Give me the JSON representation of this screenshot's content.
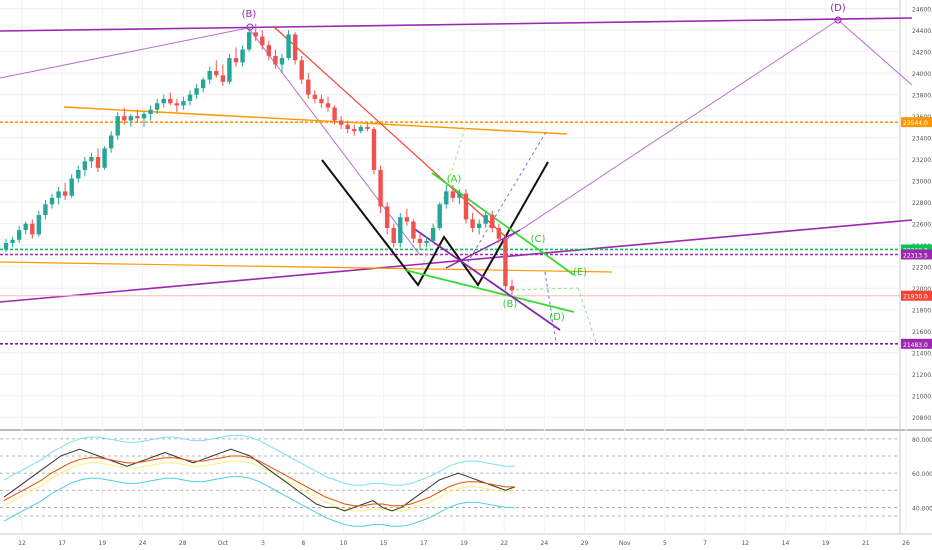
{
  "chart_data": {
    "type": "candlestick",
    "instrument_panel": {
      "y_axis_ticks": [
        24600.0,
        24400.0,
        24200.0,
        24000.0,
        23800.0,
        23600.0,
        23400.0,
        23200.0,
        23000.0,
        22800.0,
        22600.0,
        22400.0,
        22200.0,
        22000.0,
        21800.0,
        21600.0,
        21400.0,
        21200.0,
        21000.0,
        20800.0
      ],
      "ylim": [
        20700,
        24680
      ],
      "grid": true,
      "candles": [
        [
          22360,
          22460,
          22340,
          22420
        ],
        [
          22420,
          22480,
          22380,
          22450
        ],
        [
          22450,
          22580,
          22420,
          22540
        ],
        [
          22540,
          22620,
          22500,
          22600
        ],
        [
          22600,
          22640,
          22460,
          22500
        ],
        [
          22500,
          22720,
          22480,
          22680
        ],
        [
          22680,
          22820,
          22640,
          22780
        ],
        [
          22780,
          22880,
          22740,
          22840
        ],
        [
          22840,
          22940,
          22780,
          22900
        ],
        [
          22900,
          22980,
          22820,
          22860
        ],
        [
          22860,
          23060,
          22840,
          23020
        ],
        [
          23020,
          23140,
          22980,
          23100
        ],
        [
          23100,
          23220,
          23040,
          23180
        ],
        [
          23180,
          23260,
          23120,
          23220
        ],
        [
          23220,
          23300,
          23080,
          23120
        ],
        [
          23120,
          23320,
          23100,
          23300
        ],
        [
          23300,
          23460,
          23260,
          23420
        ],
        [
          23420,
          23640,
          23380,
          23600
        ],
        [
          23600,
          23680,
          23520,
          23560
        ],
        [
          23560,
          23620,
          23500,
          23600
        ],
        [
          23600,
          23660,
          23540,
          23580
        ],
        [
          23580,
          23640,
          23500,
          23620
        ],
        [
          23620,
          23700,
          23560,
          23660
        ],
        [
          23660,
          23760,
          23620,
          23720
        ],
        [
          23720,
          23800,
          23680,
          23760
        ],
        [
          23760,
          23820,
          23700,
          23720
        ],
        [
          23720,
          23760,
          23640,
          23700
        ],
        [
          23700,
          23780,
          23660,
          23740
        ],
        [
          23740,
          23840,
          23700,
          23800
        ],
        [
          23800,
          23900,
          23760,
          23860
        ],
        [
          23860,
          23960,
          23820,
          23940
        ],
        [
          23940,
          24060,
          23900,
          24020
        ],
        [
          24020,
          24120,
          23960,
          23980
        ],
        [
          23980,
          24080,
          23880,
          23920
        ],
        [
          23920,
          24180,
          23900,
          24140
        ],
        [
          24140,
          24240,
          24060,
          24100
        ],
        [
          24100,
          24260,
          24060,
          24220
        ],
        [
          24220,
          24420,
          24200,
          24380
        ],
        [
          24380,
          24460,
          24300,
          24340
        ],
        [
          24340,
          24400,
          24220,
          24260
        ],
        [
          24260,
          24300,
          24120,
          24160
        ],
        [
          24160,
          24220,
          24040,
          24080
        ],
        [
          24080,
          24180,
          24000,
          24140
        ],
        [
          24140,
          24400,
          24120,
          24360
        ],
        [
          24360,
          24380,
          24080,
          24120
        ],
        [
          24120,
          24160,
          23900,
          23940
        ],
        [
          23940,
          24000,
          23760,
          23800
        ],
        [
          23800,
          23840,
          23720,
          23760
        ],
        [
          23760,
          23800,
          23680,
          23720
        ],
        [
          23720,
          23780,
          23640,
          23680
        ],
        [
          23680,
          23700,
          23520,
          23560
        ],
        [
          23560,
          23600,
          23480,
          23520
        ],
        [
          23520,
          23560,
          23440,
          23480
        ],
        [
          23480,
          23520,
          23420,
          23460
        ],
        [
          23460,
          23520,
          23440,
          23500
        ],
        [
          23500,
          23540,
          23460,
          23480
        ],
        [
          23480,
          23500,
          23060,
          23100
        ],
        [
          23100,
          23140,
          22700,
          22760
        ],
        [
          22760,
          22800,
          22500,
          22560
        ],
        [
          22560,
          22600,
          22380,
          22420
        ],
        [
          22420,
          22700,
          22380,
          22660
        ],
        [
          22660,
          22740,
          22580,
          22620
        ],
        [
          22620,
          22640,
          22420,
          22460
        ],
        [
          22460,
          22500,
          22360,
          22420
        ],
        [
          22420,
          22480,
          22380,
          22440
        ],
        [
          22440,
          22600,
          22420,
          22560
        ],
        [
          22560,
          22800,
          22540,
          22780
        ],
        [
          22780,
          22960,
          22740,
          22900
        ],
        [
          22900,
          22960,
          22800,
          22840
        ],
        [
          22840,
          22920,
          22780,
          22880
        ],
        [
          22880,
          22920,
          22600,
          22640
        ],
        [
          22640,
          22700,
          22520,
          22560
        ],
        [
          22560,
          22640,
          22500,
          22600
        ],
        [
          22600,
          22720,
          22560,
          22680
        ],
        [
          22680,
          22720,
          22520,
          22560
        ],
        [
          22560,
          22600,
          22420,
          22460
        ],
        [
          22460,
          22500,
          21980,
          22020
        ],
        [
          22020,
          22080,
          21940,
          21980
        ]
      ],
      "price_labels": [
        {
          "text": "23544.0",
          "color": "#ff9800"
        },
        {
          "text": "22360.0",
          "color": "#00c853"
        },
        {
          "text": "22313.5",
          "color": "#9c27b0"
        },
        {
          "text": "21930.0",
          "color": "#f44336"
        },
        {
          "text": "21483.0",
          "color": "#9c27b0"
        }
      ],
      "annotations": [
        {
          "text": "(B)",
          "color": "#9c27b0"
        },
        {
          "text": "(D)",
          "color": "#9c27b0"
        },
        {
          "text": "(A)",
          "color": "#33cc33"
        },
        {
          "text": "(C)",
          "color": "#33cc33"
        },
        {
          "text": "(E)",
          "color": "#33cc33"
        },
        {
          "text": "(B)",
          "color": "#33cc33"
        },
        {
          "text": "(D)",
          "color": "#33cc33"
        }
      ]
    },
    "oscillator_panel": {
      "y_axis_ticks": [
        80.0,
        60.0,
        40.0
      ],
      "ylim": [
        28,
        84
      ],
      "series": [
        {
          "values": [
            46,
            50,
            54,
            58,
            62,
            66,
            70,
            72,
            74,
            72,
            70,
            68,
            66,
            64,
            66,
            68,
            70,
            72,
            70,
            68,
            66,
            68,
            70,
            72,
            74,
            72,
            70,
            66,
            62,
            58,
            54,
            50,
            46,
            42,
            40,
            40,
            38,
            40,
            42,
            44,
            40,
            38,
            40,
            44,
            48,
            52,
            56,
            58,
            60,
            58,
            56,
            54,
            52,
            50,
            52
          ]
        },
        {
          "values": [
            44,
            47,
            50,
            53,
            56,
            60,
            63,
            66,
            68,
            69,
            69,
            68,
            67,
            66,
            66,
            67,
            68,
            69,
            69,
            68,
            67,
            67,
            68,
            69,
            70,
            70,
            69,
            67,
            64,
            61,
            58,
            55,
            52,
            49,
            46,
            44,
            42,
            41,
            41,
            42,
            42,
            41,
            41,
            42,
            44,
            46,
            49,
            52,
            54,
            55,
            55,
            54,
            53,
            52,
            52
          ]
        }
      ]
    },
    "x_axis_ticks": [
      "12",
      "17",
      "19",
      "24",
      "28",
      "Oct",
      "3",
      "8",
      "10",
      "15",
      "17",
      "19",
      "22",
      "24",
      "29",
      "Nov",
      "5",
      "7",
      "12",
      "14",
      "19",
      "21",
      "26"
    ]
  }
}
